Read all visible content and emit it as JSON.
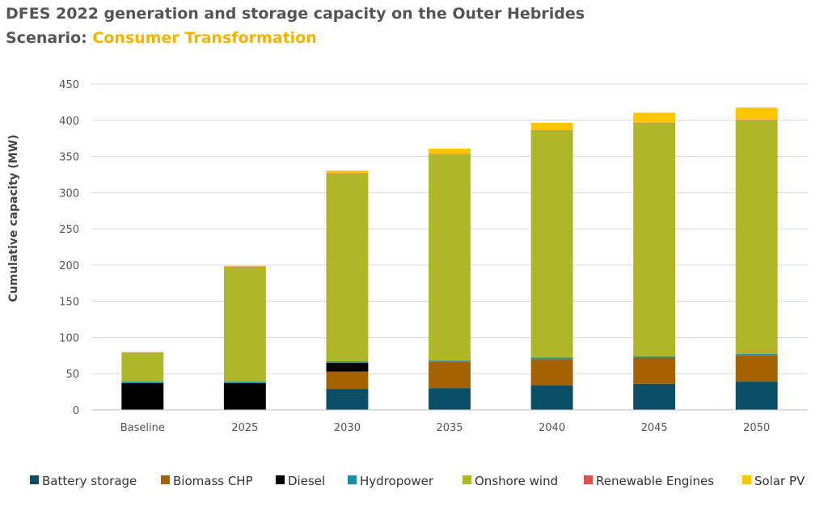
{
  "title": "DFES 2022 generation and storage capacity on the Outer Hebrides",
  "subtitle_prefix": "Scenario: ",
  "scenario": "Consumer Transformation",
  "chart_data": {
    "type": "bar",
    "stacked": true,
    "categories": [
      "Baseline",
      "2025",
      "2030",
      "2035",
      "2040",
      "2045",
      "2050"
    ],
    "ylabel": "Cumulative capacity (MW)",
    "xlabel": "",
    "ylim": [
      0,
      450
    ],
    "yticks": [
      0,
      50,
      100,
      150,
      200,
      250,
      300,
      350,
      400,
      450
    ],
    "grid": true,
    "legend_position": "bottom",
    "series": [
      {
        "name": "Battery storage",
        "color": "#0a4f66",
        "values": [
          0,
          0,
          29,
          30,
          34,
          36,
          39
        ]
      },
      {
        "name": "Biomass CHP",
        "color": "#a56200",
        "values": [
          0,
          0,
          24,
          36,
          36,
          36,
          36
        ]
      },
      {
        "name": "Diesel",
        "color": "#000000",
        "values": [
          37,
          37,
          12,
          0,
          0,
          0,
          0
        ]
      },
      {
        "name": "Hydropower",
        "color": "#1a8ea3",
        "values": [
          2,
          2,
          2,
          2,
          2,
          2,
          2
        ]
      },
      {
        "name": "Onshore wind",
        "color": "#adb728",
        "values": [
          40,
          158,
          259,
          285,
          314,
          322,
          323
        ]
      },
      {
        "name": "Renewable Engines",
        "color": "#d9534f",
        "values": [
          0.5,
          0.5,
          0.5,
          0.5,
          0.5,
          0.5,
          0.5
        ]
      },
      {
        "name": "Solar PV",
        "color": "#fbc500",
        "values": [
          0.5,
          1.5,
          4,
          7.5,
          10,
          14,
          17
        ]
      }
    ]
  }
}
